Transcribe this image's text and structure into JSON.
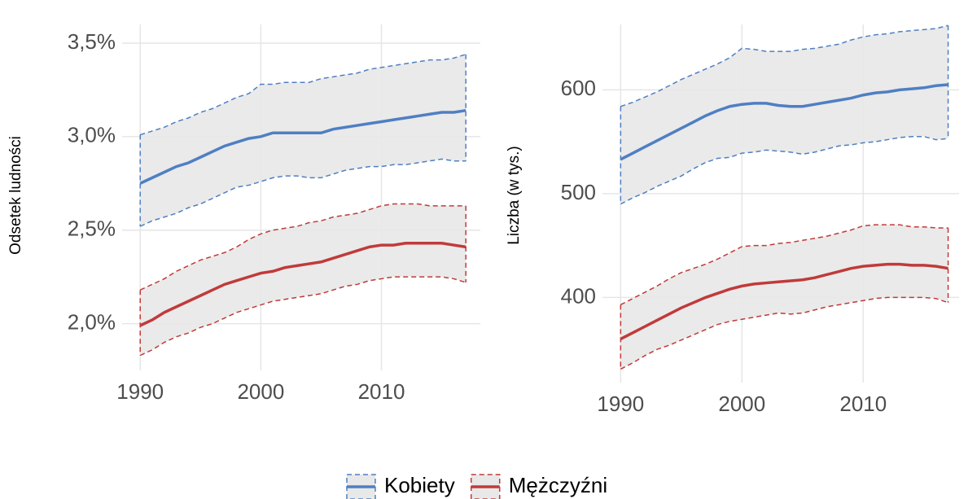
{
  "chart_data": [
    {
      "type": "line",
      "ylabel": "Odsetek ludności",
      "grid": true,
      "legend": "bottom",
      "x": [
        1990,
        1991,
        1992,
        1993,
        1994,
        1995,
        1996,
        1997,
        1998,
        1999,
        2000,
        2001,
        2002,
        2003,
        2004,
        2005,
        2006,
        2007,
        2008,
        2009,
        2010,
        2011,
        2012,
        2013,
        2014,
        2015,
        2016,
        2017
      ],
      "xlim": [
        1988.5,
        2018.2
      ],
      "xticks": [
        1990,
        2000,
        2010
      ],
      "ylim": [
        1.75,
        3.6
      ],
      "yticks": [
        {
          "value": 2.0,
          "label": "2,0%"
        },
        {
          "value": 2.5,
          "label": "2,5%"
        },
        {
          "value": 3.0,
          "label": "3,0%"
        },
        {
          "value": 3.5,
          "label": "3,5%"
        }
      ],
      "series": [
        {
          "name": "Kobiety",
          "color": "#4f7fc3",
          "values": [
            2.75,
            2.78,
            2.81,
            2.84,
            2.86,
            2.89,
            2.92,
            2.95,
            2.97,
            2.99,
            3.0,
            3.02,
            3.02,
            3.02,
            3.02,
            3.02,
            3.04,
            3.05,
            3.06,
            3.07,
            3.08,
            3.09,
            3.1,
            3.11,
            3.12,
            3.13,
            3.13,
            3.14
          ],
          "upper": [
            3.01,
            3.03,
            3.05,
            3.08,
            3.1,
            3.13,
            3.15,
            3.18,
            3.21,
            3.23,
            3.28,
            3.28,
            3.29,
            3.29,
            3.29,
            3.31,
            3.32,
            3.33,
            3.34,
            3.36,
            3.37,
            3.38,
            3.39,
            3.4,
            3.41,
            3.41,
            3.42,
            3.44
          ],
          "lower": [
            2.52,
            2.55,
            2.57,
            2.59,
            2.62,
            2.64,
            2.67,
            2.7,
            2.73,
            2.74,
            2.76,
            2.78,
            2.79,
            2.79,
            2.78,
            2.78,
            2.8,
            2.82,
            2.83,
            2.84,
            2.84,
            2.85,
            2.85,
            2.86,
            2.87,
            2.88,
            2.87,
            2.87
          ]
        },
        {
          "name": "Mężczyźni",
          "color": "#c13a3a",
          "values": [
            1.99,
            2.02,
            2.06,
            2.09,
            2.12,
            2.15,
            2.18,
            2.21,
            2.23,
            2.25,
            2.27,
            2.28,
            2.3,
            2.31,
            2.32,
            2.33,
            2.35,
            2.37,
            2.39,
            2.41,
            2.42,
            2.42,
            2.43,
            2.43,
            2.43,
            2.43,
            2.42,
            2.41
          ],
          "upper": [
            2.18,
            2.21,
            2.24,
            2.28,
            2.31,
            2.34,
            2.36,
            2.38,
            2.41,
            2.45,
            2.48,
            2.5,
            2.51,
            2.52,
            2.54,
            2.55,
            2.57,
            2.58,
            2.59,
            2.61,
            2.63,
            2.64,
            2.64,
            2.64,
            2.63,
            2.63,
            2.63,
            2.63
          ],
          "lower": [
            1.83,
            1.86,
            1.9,
            1.93,
            1.95,
            1.98,
            2.0,
            2.03,
            2.06,
            2.08,
            2.1,
            2.12,
            2.13,
            2.14,
            2.15,
            2.16,
            2.18,
            2.2,
            2.21,
            2.23,
            2.24,
            2.25,
            2.25,
            2.25,
            2.25,
            2.25,
            2.24,
            2.22
          ]
        }
      ]
    },
    {
      "type": "line",
      "ylabel": "Liczba (w tys.)",
      "grid": true,
      "x": [
        1990,
        1991,
        1992,
        1993,
        1994,
        1995,
        1996,
        1997,
        1998,
        1999,
        2000,
        2001,
        2002,
        2003,
        2004,
        2005,
        2006,
        2007,
        2008,
        2009,
        2010,
        2011,
        2012,
        2013,
        2014,
        2015,
        2016,
        2017
      ],
      "xlim": [
        1988.5,
        2017.9
      ],
      "xticks": [
        1990,
        2000,
        2010
      ],
      "ylim": [
        318,
        663
      ],
      "yticks": [
        400,
        500,
        600
      ],
      "series": [
        {
          "color": "#4f7fc3",
          "values": [
            533,
            539,
            545,
            551,
            557,
            563,
            569,
            575,
            580,
            584,
            586,
            587,
            587,
            585,
            584,
            584,
            586,
            588,
            590,
            592,
            595,
            597,
            598,
            600,
            601,
            602,
            604,
            605
          ],
          "upper": [
            584,
            588,
            593,
            598,
            604,
            610,
            615,
            620,
            625,
            631,
            640,
            639,
            637,
            637,
            637,
            639,
            640,
            642,
            644,
            648,
            651,
            653,
            654,
            656,
            657,
            658,
            659,
            662
          ],
          "lower": [
            490,
            496,
            501,
            507,
            512,
            517,
            524,
            530,
            534,
            535,
            539,
            540,
            542,
            541,
            540,
            538,
            540,
            543,
            546,
            547,
            549,
            550,
            552,
            554,
            555,
            555,
            552,
            553
          ]
        },
        {
          "color": "#c13a3a",
          "values": [
            360,
            366,
            372,
            378,
            384,
            390,
            395,
            400,
            404,
            408,
            411,
            413,
            414,
            415,
            416,
            417,
            419,
            422,
            425,
            428,
            430,
            431,
            432,
            432,
            431,
            431,
            430,
            428
          ],
          "upper": [
            393,
            399,
            405,
            411,
            418,
            424,
            428,
            432,
            437,
            443,
            449,
            450,
            450,
            452,
            453,
            455,
            457,
            459,
            462,
            465,
            469,
            470,
            470,
            470,
            468,
            468,
            467,
            467
          ],
          "lower": [
            331,
            337,
            344,
            350,
            354,
            359,
            364,
            369,
            374,
            377,
            379,
            381,
            383,
            385,
            384,
            385,
            388,
            391,
            393,
            395,
            397,
            399,
            400,
            400,
            400,
            400,
            399,
            395
          ]
        }
      ]
    }
  ]
}
